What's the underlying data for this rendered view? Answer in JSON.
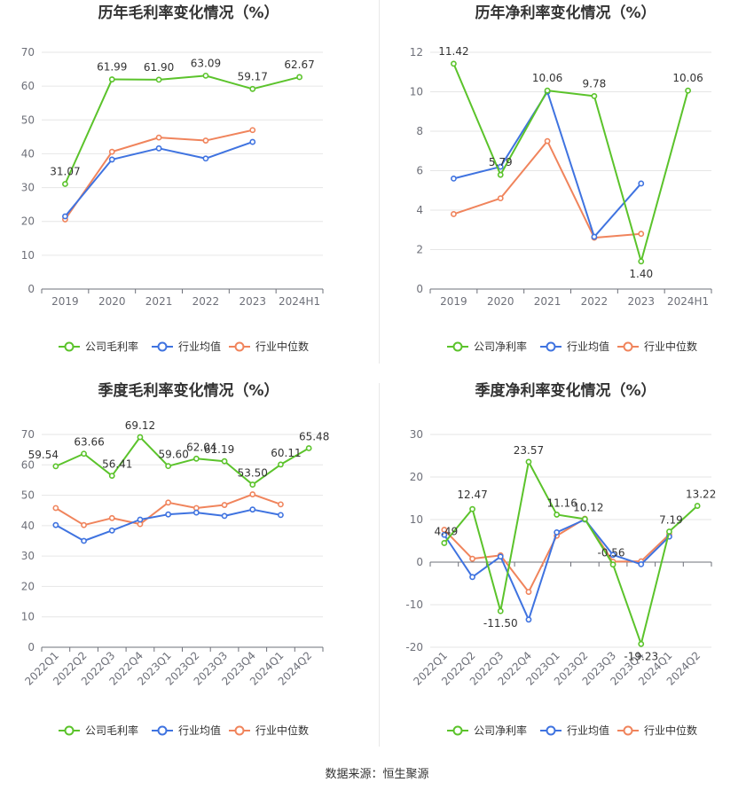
{
  "source": "数据来源：恒生聚源",
  "legend_colors": [
    "#5bc32b",
    "#3f73e0",
    "#f0845c"
  ],
  "chart_data": [
    {
      "type": "line",
      "title": "历年毛利率变化情况（%）",
      "categories": [
        "2019",
        "2020",
        "2021",
        "2022",
        "2023",
        "2024H1"
      ],
      "ylim": [
        0,
        70
      ],
      "yticks": [
        0,
        10,
        20,
        30,
        40,
        50,
        60,
        70
      ],
      "grid": true,
      "legend_position": "bottom",
      "series": [
        {
          "name": "公司毛利率",
          "color": "#5bc32b",
          "labeled": true,
          "values": [
            31.07,
            61.99,
            61.9,
            63.09,
            59.17,
            62.67
          ],
          "labels": [
            "31.07",
            "61.99",
            "61.90",
            "63.09",
            "59.17",
            "62.67"
          ]
        },
        {
          "name": "行业均值",
          "color": "#3f73e0",
          "labeled": false,
          "values": [
            21.5,
            38.3,
            41.6,
            38.6,
            43.5,
            null
          ]
        },
        {
          "name": "行业中位数",
          "color": "#f0845c",
          "labeled": false,
          "values": [
            20.6,
            40.6,
            44.8,
            43.9,
            47.0,
            null
          ]
        }
      ]
    },
    {
      "type": "line",
      "title": "历年净利率变化情况（%）",
      "categories": [
        "2019",
        "2020",
        "2021",
        "2022",
        "2023",
        "2024H1"
      ],
      "ylim": [
        0,
        12
      ],
      "yticks": [
        0,
        2,
        4,
        6,
        8,
        10,
        12
      ],
      "grid": true,
      "legend_position": "bottom",
      "series": [
        {
          "name": "公司净利率",
          "color": "#5bc32b",
          "labeled": true,
          "values": [
            11.42,
            5.79,
            10.06,
            9.78,
            1.4,
            10.06
          ],
          "labels": [
            "11.42",
            "5.79",
            "10.06",
            "9.78",
            "1.40",
            "10.06"
          ]
        },
        {
          "name": "行业均值",
          "color": "#3f73e0",
          "labeled": false,
          "values": [
            5.6,
            6.2,
            10.0,
            2.65,
            5.35,
            null
          ]
        },
        {
          "name": "行业中位数",
          "color": "#f0845c",
          "labeled": false,
          "values": [
            3.8,
            4.6,
            7.5,
            2.6,
            2.8,
            null
          ]
        }
      ]
    },
    {
      "type": "line",
      "title": "季度毛利率变化情况（%）",
      "categories": [
        "2022Q1",
        "2022Q2",
        "2022Q3",
        "2022Q4",
        "2023Q1",
        "2023Q2",
        "2023Q3",
        "2023Q4",
        "2024Q1",
        "2024Q2"
      ],
      "ylim": [
        0,
        70
      ],
      "yticks": [
        0,
        10,
        20,
        30,
        40,
        50,
        60,
        70
      ],
      "grid": true,
      "legend_position": "bottom",
      "series": [
        {
          "name": "公司毛利率",
          "color": "#5bc32b",
          "labeled": true,
          "values": [
            59.54,
            63.66,
            56.41,
            69.12,
            59.6,
            62.04,
            61.19,
            53.5,
            60.11,
            65.48
          ],
          "labels": [
            "59.54",
            "63.66",
            "56.41",
            "69.12",
            "59.60",
            "62.04",
            "61.19",
            "53.50",
            "60.11",
            "65.48"
          ]
        },
        {
          "name": "行业均值",
          "color": "#3f73e0",
          "labeled": false,
          "values": [
            40.2,
            35.0,
            38.4,
            42.0,
            43.7,
            44.3,
            43.2,
            45.3,
            43.5,
            null
          ]
        },
        {
          "name": "行业中位数",
          "color": "#f0845c",
          "labeled": false,
          "values": [
            45.8,
            40.2,
            42.5,
            40.5,
            47.6,
            45.8,
            46.8,
            50.3,
            47.0,
            null
          ]
        }
      ]
    },
    {
      "type": "line",
      "title": "季度净利率变化情况（%）",
      "categories": [
        "2022Q1",
        "2022Q2",
        "2022Q3",
        "2022Q4",
        "2023Q1",
        "2023Q2",
        "2023Q3",
        "2023Q4",
        "2024Q1",
        "2024Q2"
      ],
      "ylim": [
        -20,
        30
      ],
      "yticks": [
        -20,
        -10,
        0,
        10,
        20,
        30
      ],
      "grid": true,
      "legend_position": "bottom",
      "series": [
        {
          "name": "公司净利率",
          "color": "#5bc32b",
          "labeled": true,
          "values": [
            4.49,
            12.47,
            -11.5,
            23.57,
            11.16,
            10.12,
            -0.56,
            -19.23,
            7.19,
            13.22
          ],
          "labels": [
            "4.49",
            "12.47",
            "-11.50",
            "23.57",
            "11.16",
            "10.12",
            "-0.56",
            "-19.23",
            "7.19",
            "13.22"
          ]
        },
        {
          "name": "行业均值",
          "color": "#3f73e0",
          "labeled": false,
          "values": [
            6.4,
            -3.5,
            1.3,
            -13.5,
            7.0,
            10.0,
            1.7,
            -0.5,
            6.0,
            null
          ]
        },
        {
          "name": "行业中位数",
          "color": "#f0845c",
          "labeled": false,
          "values": [
            7.6,
            0.8,
            1.6,
            -7.0,
            6.2,
            10.2,
            0.1,
            0.2,
            6.5,
            null
          ]
        }
      ]
    }
  ]
}
